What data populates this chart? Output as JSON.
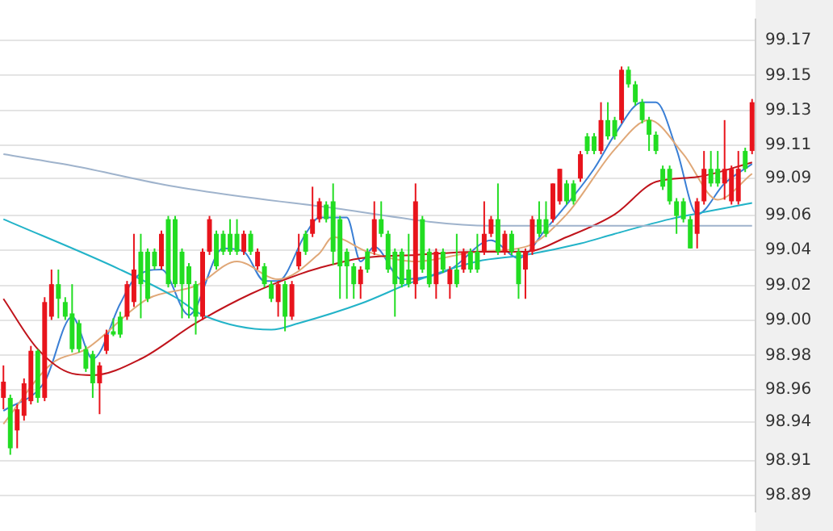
{
  "chart_data": {
    "type": "candlestick",
    "categories": [
      null,
      null,
      null,
      null,
      null,
      null,
      null,
      null,
      null,
      null,
      null,
      null,
      null,
      null,
      null,
      null,
      null,
      null,
      null,
      null,
      null,
      null,
      null,
      null,
      null,
      null,
      null,
      null,
      null,
      null,
      null,
      null,
      null,
      null,
      null,
      null,
      null,
      null,
      null,
      null,
      null,
      null,
      null,
      null,
      null,
      null,
      null,
      null,
      null,
      null,
      null,
      null,
      null,
      null,
      null,
      null,
      null,
      null,
      null,
      null,
      null,
      null,
      null,
      null,
      null,
      null,
      null,
      null,
      null,
      null,
      null,
      null,
      null,
      null,
      null,
      null,
      null,
      null,
      null,
      null,
      null,
      null,
      null,
      null,
      null,
      null,
      null,
      null,
      null,
      null,
      null,
      null,
      null,
      null,
      null,
      null,
      null,
      null,
      null,
      null,
      null,
      null,
      null,
      null,
      null,
      null,
      null,
      null,
      null,
      null
    ],
    "ohlc": [
      [
        98.95,
        98.97,
        98.943,
        98.96
      ],
      [
        98.95,
        98.952,
        98.915,
        98.919
      ],
      [
        98.93,
        98.946,
        98.919,
        98.943
      ],
      [
        98.939,
        98.962,
        98.936,
        98.959
      ],
      [
        98.948,
        98.982,
        98.946,
        98.979
      ],
      [
        98.979,
        98.98,
        98.947,
        98.95
      ],
      [
        98.95,
        99.012,
        98.948,
        99.009
      ],
      [
        99.0,
        99.029,
        98.998,
        99.02
      ],
      [
        99.02,
        99.029,
        98.999,
        99.011
      ],
      [
        99.009,
        99.012,
        98.998,
        99.0
      ],
      [
        99.002,
        99.02,
        98.978,
        98.98
      ],
      [
        98.996,
        98.998,
        98.978,
        98.98
      ],
      [
        98.98,
        98.982,
        98.966,
        98.968
      ],
      [
        98.977,
        98.979,
        98.95,
        98.959
      ],
      [
        98.959,
        98.972,
        98.94,
        98.97
      ],
      [
        98.979,
        98.992,
        98.977,
        98.989
      ],
      [
        98.991,
        98.999,
        98.988,
        98.989
      ],
      [
        99.0,
        99.003,
        98.987,
        98.989
      ],
      [
        99.0,
        99.022,
        98.998,
        99.02
      ],
      [
        99.009,
        99.051,
        99.006,
        99.029
      ],
      [
        99.04,
        99.051,
        98.999,
        99.02
      ],
      [
        99.04,
        99.042,
        99.009,
        99.011
      ],
      [
        99.04,
        99.042,
        99.029,
        99.031
      ],
      [
        99.031,
        99.053,
        99.029,
        99.051
      ],
      [
        99.06,
        99.062,
        99.018,
        99.02
      ],
      [
        99.06,
        99.062,
        99.018,
        99.02
      ],
      [
        99.04,
        99.042,
        98.999,
        99.02
      ],
      [
        99.031,
        99.033,
        98.999,
        99.02
      ],
      [
        99.02,
        99.022,
        98.989,
        99.0
      ],
      [
        99.0,
        99.042,
        98.998,
        99.04
      ],
      [
        99.04,
        99.062,
        99.038,
        99.06
      ],
      [
        99.051,
        99.053,
        99.029,
        99.031
      ],
      [
        99.051,
        99.053,
        99.038,
        99.04
      ],
      [
        99.051,
        99.06,
        99.038,
        99.04
      ],
      [
        99.051,
        99.06,
        99.038,
        99.04
      ],
      [
        99.04,
        99.053,
        99.038,
        99.051
      ],
      [
        99.051,
        99.053,
        99.038,
        99.04
      ],
      [
        99.031,
        99.042,
        99.029,
        99.04
      ],
      [
        99.031,
        99.033,
        99.018,
        99.02
      ],
      [
        99.02,
        99.022,
        99.009,
        99.011
      ],
      [
        99.009,
        99.022,
        99.0,
        99.02
      ],
      [
        99.02,
        99.022,
        98.991,
        99.0
      ],
      [
        99.0,
        99.022,
        98.998,
        99.02
      ],
      [
        99.031,
        99.051,
        99.029,
        99.04
      ],
      [
        99.051,
        99.053,
        99.038,
        99.04
      ],
      [
        99.051,
        99.08,
        99.049,
        99.06
      ],
      [
        99.06,
        99.073,
        99.058,
        99.071
      ],
      [
        99.069,
        99.071,
        99.058,
        99.06
      ],
      [
        99.071,
        99.082,
        99.032,
        99.04
      ],
      [
        99.06,
        99.062,
        99.011,
        99.031
      ],
      [
        99.04,
        99.042,
        99.011,
        99.031
      ],
      [
        99.031,
        99.033,
        99.011,
        99.02
      ],
      [
        99.02,
        99.031,
        99.011,
        99.029
      ],
      [
        99.04,
        99.042,
        99.027,
        99.029
      ],
      [
        99.04,
        99.071,
        99.038,
        99.06
      ],
      [
        99.06,
        99.071,
        99.049,
        99.051
      ],
      [
        99.051,
        99.053,
        99.027,
        99.029
      ],
      [
        99.04,
        99.042,
        99.0,
        99.02
      ],
      [
        99.04,
        99.042,
        99.018,
        99.02
      ],
      [
        99.029,
        99.051,
        99.018,
        99.02
      ],
      [
        99.02,
        99.082,
        99.011,
        99.071
      ],
      [
        99.06,
        99.062,
        99.027,
        99.029
      ],
      [
        99.04,
        99.042,
        99.018,
        99.02
      ],
      [
        99.02,
        99.042,
        99.011,
        99.04
      ],
      [
        99.04,
        99.042,
        99.027,
        99.029
      ],
      [
        99.02,
        99.031,
        99.011,
        99.029
      ],
      [
        99.029,
        99.051,
        99.018,
        99.02
      ],
      [
        99.029,
        99.042,
        99.027,
        99.04
      ],
      [
        99.04,
        99.042,
        99.027,
        99.029
      ],
      [
        99.04,
        99.051,
        99.027,
        99.029
      ],
      [
        99.04,
        99.071,
        99.038,
        99.051
      ],
      [
        99.051,
        99.062,
        99.049,
        99.06
      ],
      [
        99.06,
        99.082,
        99.038,
        99.04
      ],
      [
        99.04,
        99.053,
        99.038,
        99.051
      ],
      [
        99.051,
        99.053,
        99.038,
        99.04
      ],
      [
        99.04,
        99.042,
        99.011,
        99.02
      ],
      [
        99.029,
        99.042,
        99.011,
        99.04
      ],
      [
        99.04,
        99.062,
        99.038,
        99.06
      ],
      [
        99.06,
        99.071,
        99.049,
        99.051
      ],
      [
        99.06,
        99.071,
        99.049,
        99.051
      ],
      [
        99.06,
        99.082,
        99.058,
        99.082
      ],
      [
        99.071,
        99.091,
        99.069,
        99.091
      ],
      [
        99.082,
        99.084,
        99.069,
        99.071
      ],
      [
        99.082,
        99.084,
        99.069,
        99.071
      ],
      [
        99.085,
        99.102,
        99.083,
        99.1
      ],
      [
        99.111,
        99.113,
        99.1,
        99.102
      ],
      [
        99.111,
        99.113,
        99.1,
        99.102
      ],
      [
        99.102,
        99.132,
        99.1,
        99.121
      ],
      [
        99.121,
        99.132,
        99.109,
        99.111
      ],
      [
        99.121,
        99.123,
        99.109,
        99.111
      ],
      [
        99.121,
        99.154,
        99.119,
        99.152
      ],
      [
        99.152,
        99.154,
        99.141,
        99.143
      ],
      [
        99.143,
        99.145,
        99.13,
        99.132
      ],
      [
        99.132,
        99.134,
        99.119,
        99.121
      ],
      [
        99.121,
        99.123,
        99.102,
        99.112
      ],
      [
        99.112,
        99.114,
        99.1,
        99.102
      ],
      [
        99.091,
        99.093,
        99.078,
        99.08
      ],
      [
        99.091,
        99.093,
        99.069,
        99.071
      ],
      [
        99.071,
        99.073,
        99.051,
        99.062
      ],
      [
        99.071,
        99.073,
        99.058,
        99.06
      ],
      [
        99.06,
        99.062,
        99.042,
        99.042
      ],
      [
        99.051,
        99.073,
        99.042,
        99.071
      ],
      [
        99.071,
        99.102,
        99.069,
        99.091
      ],
      [
        99.091,
        99.102,
        99.08,
        99.082
      ],
      [
        99.091,
        99.102,
        99.08,
        99.082
      ],
      [
        99.082,
        99.121,
        99.072,
        99.091
      ],
      [
        99.071,
        99.093,
        99.069,
        99.091
      ],
      [
        99.071,
        99.102,
        99.069,
        99.091
      ],
      [
        99.102,
        99.104,
        99.089,
        99.091
      ],
      [
        99.102,
        99.134,
        99.1,
        99.132
      ]
    ],
    "colors": [
      "#e8141c",
      "#22dd22",
      "#e8141c",
      "#e8141c",
      "#e8141c",
      "#22dd22",
      "#e8141c",
      "#e8141c",
      "#22dd22",
      "#22dd22",
      "#22dd22",
      "#22dd22",
      "#22dd22",
      "#22dd22",
      "#e8141c",
      "#e8141c",
      "#22dd22",
      "#22dd22",
      "#e8141c",
      "#e8141c",
      "#22dd22",
      "#22dd22",
      "#22dd22",
      "#e8141c",
      "#22dd22",
      "#22dd22",
      "#22dd22",
      "#22dd22",
      "#22dd22",
      "#e8141c",
      "#e8141c",
      "#22dd22",
      "#22dd22",
      "#22dd22",
      "#22dd22",
      "#e8141c",
      "#22dd22",
      "#e8141c",
      "#22dd22",
      "#22dd22",
      "#e8141c",
      "#22dd22",
      "#e8141c",
      "#e8141c",
      "#22dd22",
      "#e8141c",
      "#e8141c",
      "#22dd22",
      "#22dd22",
      "#22dd22",
      "#22dd22",
      "#22dd22",
      "#e8141c",
      "#22dd22",
      "#e8141c",
      "#22dd22",
      "#22dd22",
      "#22dd22",
      "#22dd22",
      "#22dd22",
      "#e8141c",
      "#22dd22",
      "#22dd22",
      "#e8141c",
      "#22dd22",
      "#e8141c",
      "#22dd22",
      "#e8141c",
      "#22dd22",
      "#22dd22",
      "#e8141c",
      "#e8141c",
      "#22dd22",
      "#e8141c",
      "#22dd22",
      "#22dd22",
      "#e8141c",
      "#e8141c",
      "#22dd22",
      "#22dd22",
      "#e8141c",
      "#e8141c",
      "#22dd22",
      "#22dd22",
      "#e8141c",
      "#22dd22",
      "#22dd22",
      "#e8141c",
      "#22dd22",
      "#22dd22",
      "#e8141c",
      "#22dd22",
      "#22dd22",
      "#22dd22",
      "#22dd22",
      "#22dd22",
      "#22dd22",
      "#22dd22",
      "#22dd22",
      "#22dd22",
      "#22dd22",
      "#e8141c",
      "#e8141c",
      "#22dd22",
      "#22dd22",
      "#e8141c",
      "#e8141c",
      "#e8141c",
      "#22dd22",
      "#e8141c"
    ],
    "series": [
      {
        "type": "line",
        "color": "#9fb3cc",
        "values": [
          99.1,
          null,
          null,
          null,
          null,
          null,
          null,
          null,
          null,
          null,
          99.093,
          null,
          null,
          null,
          null,
          null,
          null,
          null,
          null,
          null,
          null,
          null,
          null,
          null,
          null,
          99.08,
          null,
          null,
          null,
          null,
          null,
          null,
          null,
          null,
          null,
          null,
          null,
          null,
          null,
          null,
          null,
          null,
          null,
          null,
          null,
          null,
          99.068,
          null,
          null,
          null,
          null,
          null,
          null,
          null,
          null,
          null,
          null,
          null,
          null,
          null,
          null,
          null,
          null,
          null,
          null,
          null,
          null,
          null,
          null,
          null,
          null,
          99.056,
          null,
          null,
          null,
          null,
          null,
          null,
          null,
          null,
          null,
          null,
          null,
          null,
          null,
          null,
          null,
          null,
          null,
          null,
          99.056,
          null,
          null,
          null,
          null,
          null,
          null,
          null,
          null,
          null,
          null,
          null,
          null,
          null,
          null,
          null,
          null,
          null,
          null,
          99.056
        ]
      },
      {
        "type": "line",
        "color": "#22b3c8",
        "values": [
          99.06,
          null,
          null,
          null,
          null,
          null,
          null,
          null,
          null,
          null,
          null,
          null,
          null,
          null,
          null,
          null,
          null,
          99.029,
          null,
          null,
          null,
          null,
          null,
          null,
          null,
          99.012,
          null,
          null,
          null,
          99.001,
          null,
          null,
          null,
          null,
          null,
          null,
          null,
          null,
          null,
          98.992,
          null,
          null,
          null,
          98.996,
          null,
          null,
          null,
          null,
          null,
          null,
          null,
          null,
          99.008,
          null,
          null,
          null,
          null,
          null,
          null,
          null,
          99.022,
          null,
          null,
          null,
          null,
          null,
          null,
          null,
          null,
          99.034,
          null,
          null,
          null,
          null,
          null,
          null,
          99.038,
          null,
          null,
          null,
          null,
          null,
          null,
          null,
          99.045,
          null,
          null,
          null,
          null,
          99.051,
          null,
          null,
          null,
          null,
          null,
          null,
          null,
          99.06,
          null,
          null,
          null,
          null,
          null,
          null,
          null,
          null,
          null,
          null,
          null,
          99.07
        ]
      },
      {
        "type": "line",
        "color": "#c0141c",
        "values": [
          99.011,
          null,
          null,
          null,
          null,
          98.98,
          null,
          null,
          null,
          null,
          98.965,
          null,
          null,
          98.964,
          null,
          null,
          null,
          null,
          null,
          null,
          98.974,
          null,
          null,
          null,
          null,
          null,
          null,
          null,
          98.996,
          null,
          null,
          null,
          null,
          null,
          null,
          null,
          99.014,
          null,
          null,
          null,
          null,
          null,
          null,
          99.026,
          null,
          null,
          99.03,
          null,
          null,
          null,
          null,
          null,
          99.036,
          null,
          null,
          null,
          null,
          null,
          null,
          null,
          99.038,
          null,
          null,
          null,
          null,
          null,
          null,
          null,
          null,
          99.04,
          null,
          null,
          null,
          null,
          null,
          null,
          99.04,
          null,
          null,
          null,
          null,
          null,
          99.049,
          null,
          null,
          null,
          null,
          null,
          null,
          99.063,
          null,
          null,
          null,
          null,
          null,
          99.083,
          null,
          null,
          null,
          null,
          null,
          99.086,
          null,
          null,
          null,
          null,
          null,
          null,
          null,
          99.095
        ]
      },
      {
        "type": "line",
        "color": "#e0a878",
        "values": [
          98.934,
          null,
          null,
          null,
          null,
          null,
          null,
          98.971,
          null,
          null,
          null,
          null,
          98.98,
          null,
          null,
          null,
          null,
          null,
          null,
          null,
          null,
          99.011,
          null,
          null,
          null,
          null,
          null,
          null,
          99.019,
          null,
          null,
          null,
          null,
          null,
          99.034,
          null,
          null,
          null,
          null,
          null,
          99.023,
          null,
          null,
          null,
          null,
          null,
          99.039,
          null,
          99.049,
          null,
          null,
          null,
          null,
          99.04,
          null,
          null,
          null,
          null,
          null,
          null,
          99.034,
          null,
          null,
          null,
          null,
          null,
          null,
          null,
          null,
          99.04,
          null,
          null,
          null,
          null,
          null,
          null,
          99.043,
          null,
          null,
          null,
          null,
          null,
          99.063,
          null,
          null,
          null,
          null,
          null,
          null,
          99.103,
          null,
          null,
          null,
          null,
          99.121,
          null,
          null,
          null,
          null,
          99.1,
          null,
          null,
          null,
          null,
          99.072,
          null,
          null,
          null,
          null,
          99.088
        ]
      },
      {
        "type": "line",
        "color": "#3a7fd5",
        "values": [
          98.942,
          null,
          null,
          null,
          null,
          null,
          98.96,
          null,
          null,
          null,
          99.0,
          null,
          null,
          98.974,
          null,
          null,
          null,
          99.008,
          null,
          99.023,
          null,
          null,
          null,
          99.029,
          null,
          null,
          null,
          99.001,
          null,
          null,
          null,
          null,
          99.042,
          null,
          null,
          99.04,
          null,
          null,
          99.022,
          null,
          99.022,
          null,
          null,
          null,
          99.051,
          null,
          99.061,
          null,
          null,
          null,
          99.061,
          null,
          99.034,
          null,
          99.043,
          null,
          null,
          null,
          99.023,
          null,
          null,
          null,
          null,
          null,
          null,
          99.029,
          null,
          null,
          null,
          null,
          null,
          99.047,
          null,
          null,
          null,
          99.036,
          null,
          null,
          null,
          99.054,
          null,
          null,
          null,
          null,
          null,
          null,
          99.091,
          null,
          null,
          99.112,
          null,
          null,
          null,
          99.132,
          null,
          99.132,
          null,
          null,
          99.103,
          null,
          null,
          99.063,
          null,
          null,
          null,
          99.082,
          null,
          null,
          null,
          99.094
        ]
      }
    ],
    "ylim": [
      98.88,
      99.183
    ],
    "yticks": [
      {
        "value": 99.17,
        "label": "99.17"
      },
      {
        "value": 99.1485,
        "label": "99.15"
      },
      {
        "value": 99.127,
        "label": "99.13"
      },
      {
        "value": 99.1054,
        "label": "99.11"
      },
      {
        "value": 99.0851,
        "label": "99.09"
      },
      {
        "value": 99.0623,
        "label": "99.06"
      },
      {
        "value": 99.0408,
        "label": "99.04"
      },
      {
        "value": 99.0192,
        "label": "99.02"
      },
      {
        "value": 98.9977,
        "label": "99.00"
      },
      {
        "value": 98.9762,
        "label": "98.98"
      },
      {
        "value": 98.9551,
        "label": "98.96"
      },
      {
        "value": 98.9351,
        "label": "98.94"
      },
      {
        "value": 98.9115,
        "label": "98.91"
      },
      {
        "value": 98.89,
        "label": "98.89"
      }
    ],
    "grid": "y",
    "tick_labels": "y"
  }
}
